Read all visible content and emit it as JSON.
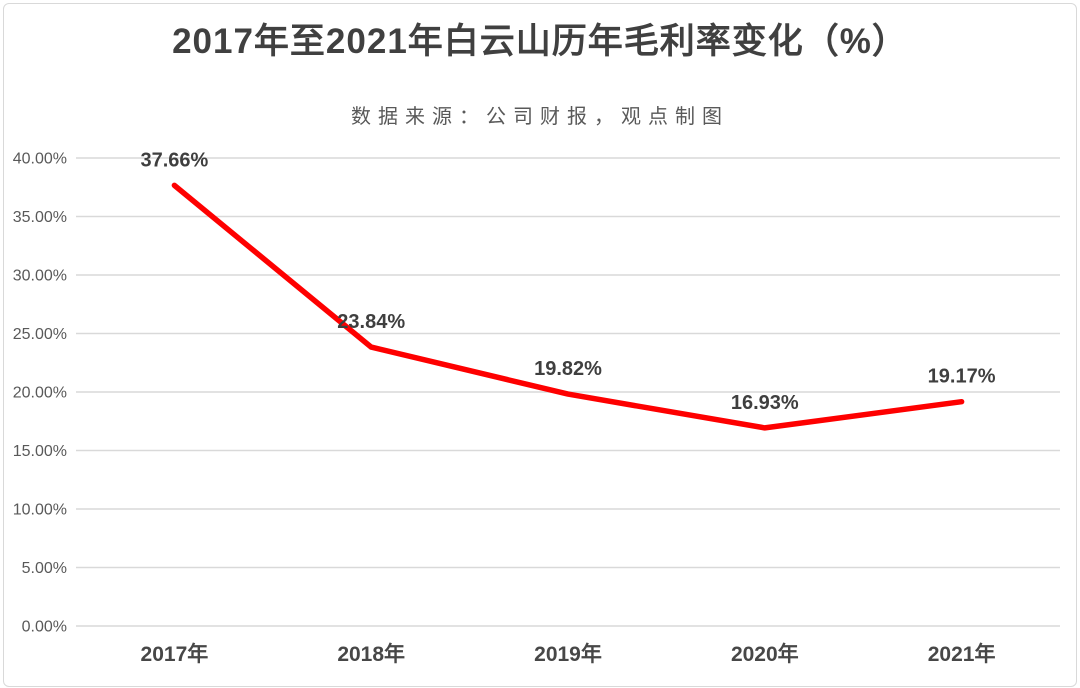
{
  "colors": {
    "background": "#ffffff",
    "card_border": "#d9d9d9",
    "title_text": "#404040",
    "subtitle_text": "#595959",
    "axis_tick_text": "#595959",
    "x_tick_text": "#474747",
    "data_label_text": "#3f3f3f",
    "gridline": "#d9d9d9",
    "series_line": "#fe0000"
  },
  "chart_data": {
    "type": "line",
    "title": "2017年至2021年白云山历年毛利率变化（%）",
    "subtitle": "数据来源：公司财报，观点制图",
    "categories": [
      "2017年",
      "2018年",
      "2019年",
      "2020年",
      "2021年"
    ],
    "values": [
      37.66,
      23.84,
      19.82,
      16.93,
      19.17
    ],
    "data_labels": [
      "37.66%",
      "23.84%",
      "19.82%",
      "16.93%",
      "19.17%"
    ],
    "y_tick_values": [
      0,
      5,
      10,
      15,
      20,
      25,
      30,
      35,
      40
    ],
    "y_tick_labels": [
      "0.00%",
      "5.00%",
      "10.00%",
      "15.00%",
      "20.00%",
      "25.00%",
      "30.00%",
      "35.00%",
      "40.00%"
    ],
    "ylim": [
      0,
      40
    ],
    "xlabel": "",
    "ylabel": "",
    "grid": "horizontal",
    "legend": "none"
  }
}
